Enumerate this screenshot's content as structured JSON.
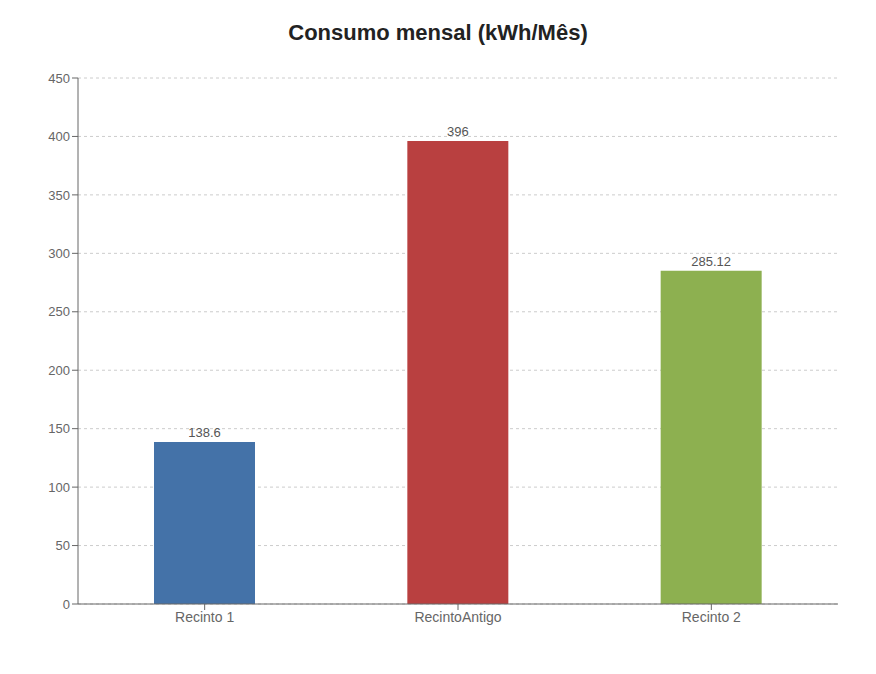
{
  "chart_data": {
    "type": "bar",
    "title": "Consumo mensal (kWh/Mês)",
    "categories": [
      "Recinto 1",
      "RecintoAntigo",
      "Recinto 2"
    ],
    "values": [
      138.6,
      396,
      285.12
    ],
    "colors": [
      "#4472a8",
      "#b94040",
      "#8db050"
    ],
    "ylim": [
      0,
      450
    ],
    "yticks": [
      0,
      50,
      100,
      150,
      200,
      250,
      300,
      350,
      400,
      450
    ],
    "grid": true,
    "data_labels": true
  }
}
